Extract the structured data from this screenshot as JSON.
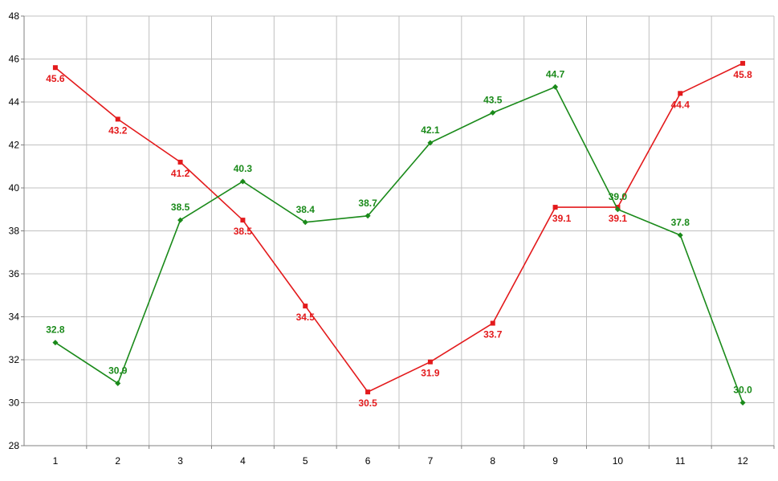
{
  "chart_data": {
    "type": "line",
    "x": [
      1,
      2,
      3,
      4,
      5,
      6,
      7,
      8,
      9,
      10,
      11,
      12
    ],
    "xlabel": "",
    "ylabel": "",
    "ylim": [
      28,
      48
    ],
    "yticks": [
      28,
      30,
      32,
      34,
      36,
      38,
      40,
      42,
      44,
      46,
      48
    ],
    "grid": true,
    "legend": "none",
    "series": [
      {
        "color": "#e31a1c",
        "marker": "square",
        "values": [
          45.6,
          43.2,
          41.2,
          38.5,
          34.5,
          30.5,
          31.9,
          33.7,
          39.1,
          39.1,
          44.4,
          45.8
        ],
        "labels": [
          "45.6",
          "43.2",
          "41.2",
          "38.5",
          "34.5",
          "30.5",
          "31.9",
          "33.7",
          "39.1",
          "39.1",
          "44.4",
          "45.8"
        ]
      },
      {
        "color": "#1a8a1a",
        "marker": "diamond",
        "values": [
          32.8,
          30.9,
          38.5,
          40.3,
          38.4,
          38.7,
          42.1,
          43.5,
          44.7,
          39.0,
          37.8,
          30.0
        ],
        "labels": [
          "32.8",
          "30.9",
          "38.5",
          "40.3",
          "38.4",
          "38.7",
          "42.1",
          "43.5",
          "44.7",
          "39.0",
          "37.8",
          "30.0"
        ]
      }
    ]
  }
}
